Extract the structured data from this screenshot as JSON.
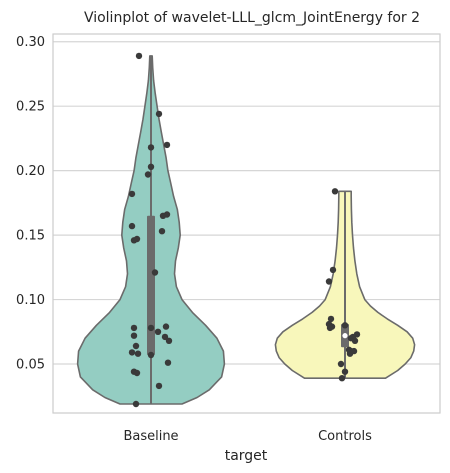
{
  "chart_data": {
    "type": "violin",
    "title": "Violinplot of wavelet-LLL_glcm_JointEnergy for 2",
    "xlabel": "target",
    "ylabel": "",
    "categories": [
      "Baseline",
      "Controls"
    ],
    "ylim": [
      0.012,
      0.306
    ],
    "yticks": [
      0.05,
      0.1,
      0.15,
      0.2,
      0.25,
      0.3
    ],
    "ytick_labels": [
      "0.05",
      "0.10",
      "0.15",
      "0.20",
      "0.25",
      "0.30"
    ],
    "grid": "horizontal",
    "colors": {
      "Baseline": "#94cdc2",
      "Controls": "#f8f7bb",
      "outline": "#6b6b6b",
      "box": "#6b6b6b",
      "points": "#3a3a3a",
      "grid": "#d6d6d6",
      "frame": "#cccccc"
    },
    "series": [
      {
        "category": "Baseline",
        "min": 0.019,
        "max": 0.289,
        "q1": 0.057,
        "median": 0.078,
        "q3": 0.165,
        "density_halfwidth": [
          [
            0.019,
            0.33
          ],
          [
            0.024,
            0.49
          ],
          [
            0.03,
            0.62
          ],
          [
            0.04,
            0.75
          ],
          [
            0.05,
            0.78
          ],
          [
            0.06,
            0.77
          ],
          [
            0.07,
            0.7
          ],
          [
            0.08,
            0.58
          ],
          [
            0.09,
            0.44
          ],
          [
            0.1,
            0.33
          ],
          [
            0.11,
            0.27
          ],
          [
            0.12,
            0.25
          ],
          [
            0.13,
            0.26
          ],
          [
            0.14,
            0.29
          ],
          [
            0.15,
            0.31
          ],
          [
            0.16,
            0.3
          ],
          [
            0.17,
            0.28
          ],
          [
            0.18,
            0.24
          ],
          [
            0.19,
            0.21
          ],
          [
            0.2,
            0.18
          ],
          [
            0.21,
            0.16
          ],
          [
            0.22,
            0.135
          ],
          [
            0.23,
            0.11
          ],
          [
            0.24,
            0.085
          ],
          [
            0.25,
            0.065
          ],
          [
            0.26,
            0.045
          ],
          [
            0.27,
            0.028
          ],
          [
            0.28,
            0.018
          ],
          [
            0.289,
            0.013
          ]
        ],
        "points": [
          {
            "y": 0.289,
            "jitter": -0.12
          },
          {
            "y": 0.244,
            "jitter": 0.08
          },
          {
            "y": 0.22,
            "jitter": 0.16
          },
          {
            "y": 0.218,
            "jitter": 0.0
          },
          {
            "y": 0.203,
            "jitter": 0.0
          },
          {
            "y": 0.197,
            "jitter": -0.03
          },
          {
            "y": 0.182,
            "jitter": -0.19
          },
          {
            "y": 0.166,
            "jitter": 0.16
          },
          {
            "y": 0.165,
            "jitter": 0.12
          },
          {
            "y": 0.157,
            "jitter": -0.19
          },
          {
            "y": 0.153,
            "jitter": 0.11
          },
          {
            "y": 0.147,
            "jitter": -0.14
          },
          {
            "y": 0.146,
            "jitter": -0.17
          },
          {
            "y": 0.121,
            "jitter": 0.04
          },
          {
            "y": 0.079,
            "jitter": 0.15
          },
          {
            "y": 0.078,
            "jitter": 0.0
          },
          {
            "y": 0.078,
            "jitter": -0.17
          },
          {
            "y": 0.075,
            "jitter": 0.07
          },
          {
            "y": 0.072,
            "jitter": -0.17
          },
          {
            "y": 0.071,
            "jitter": 0.14
          },
          {
            "y": 0.068,
            "jitter": 0.18
          },
          {
            "y": 0.064,
            "jitter": -0.15
          },
          {
            "y": 0.059,
            "jitter": -0.19
          },
          {
            "y": 0.058,
            "jitter": -0.13
          },
          {
            "y": 0.057,
            "jitter": 0.0
          },
          {
            "y": 0.051,
            "jitter": 0.17
          },
          {
            "y": 0.044,
            "jitter": -0.17
          },
          {
            "y": 0.043,
            "jitter": -0.14
          },
          {
            "y": 0.033,
            "jitter": 0.08
          },
          {
            "y": 0.019,
            "jitter": -0.15
          }
        ]
      },
      {
        "category": "Controls",
        "min": 0.039,
        "max": 0.184,
        "q1": 0.063,
        "median": 0.072,
        "q3": 0.081,
        "density_halfwidth": [
          [
            0.039,
            0.43
          ],
          [
            0.045,
            0.56
          ],
          [
            0.05,
            0.64
          ],
          [
            0.055,
            0.7
          ],
          [
            0.06,
            0.73
          ],
          [
            0.065,
            0.74
          ],
          [
            0.07,
            0.72
          ],
          [
            0.075,
            0.66
          ],
          [
            0.08,
            0.56
          ],
          [
            0.085,
            0.45
          ],
          [
            0.09,
            0.35
          ],
          [
            0.095,
            0.27
          ],
          [
            0.1,
            0.21
          ],
          [
            0.11,
            0.155
          ],
          [
            0.12,
            0.125
          ],
          [
            0.13,
            0.105
          ],
          [
            0.14,
            0.09
          ],
          [
            0.15,
            0.08
          ],
          [
            0.16,
            0.072
          ],
          [
            0.17,
            0.068
          ],
          [
            0.18,
            0.066
          ],
          [
            0.184,
            0.066
          ]
        ],
        "points": [
          {
            "y": 0.184,
            "jitter": -0.1
          },
          {
            "y": 0.123,
            "jitter": -0.12
          },
          {
            "y": 0.114,
            "jitter": -0.16
          },
          {
            "y": 0.085,
            "jitter": -0.14
          },
          {
            "y": 0.081,
            "jitter": -0.16
          },
          {
            "y": 0.08,
            "jitter": 0.0
          },
          {
            "y": 0.079,
            "jitter": -0.13
          },
          {
            "y": 0.078,
            "jitter": -0.15
          },
          {
            "y": 0.073,
            "jitter": 0.12
          },
          {
            "y": 0.071,
            "jitter": 0.08
          },
          {
            "y": 0.07,
            "jitter": 0.06
          },
          {
            "y": 0.068,
            "jitter": 0.1
          },
          {
            "y": 0.061,
            "jitter": 0.04
          },
          {
            "y": 0.06,
            "jitter": 0.06
          },
          {
            "y": 0.06,
            "jitter": 0.09
          },
          {
            "y": 0.058,
            "jitter": 0.05
          },
          {
            "y": 0.05,
            "jitter": -0.04
          },
          {
            "y": 0.044,
            "jitter": 0.0
          },
          {
            "y": 0.039,
            "jitter": -0.03
          }
        ]
      }
    ]
  }
}
